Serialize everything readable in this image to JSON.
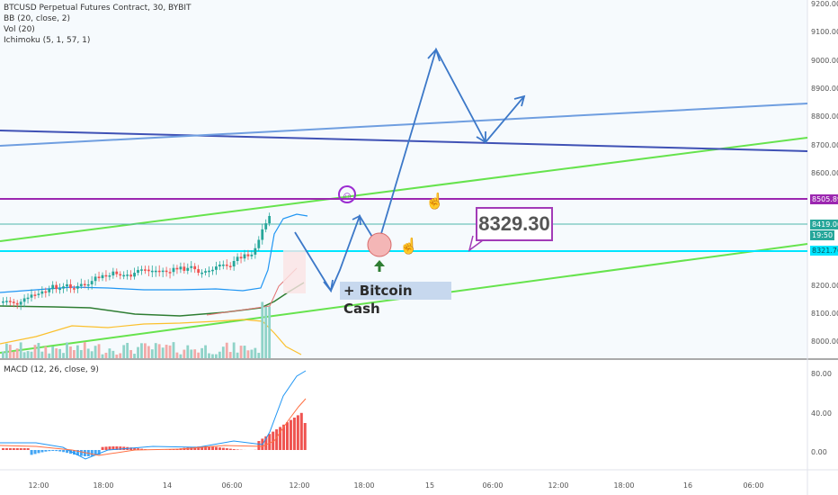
{
  "legend": {
    "symbol": "BTCUSD Perpetual Futures Contract, 30, BYBIT",
    "bb": "BB (20, close, 2)",
    "vol": "Vol (20)",
    "ichimoku": "Ichimoku (5, 1, 57, 1)"
  },
  "macd_legend": "MACD (12, 26, close, 9)",
  "price_axis": [
    "9200.00",
    "9100.00",
    "9000.00",
    "8900.00",
    "8800.00",
    "8700.00",
    "8600.00",
    "8200.00",
    "8100.00",
    "8000.00"
  ],
  "price_tags": {
    "resistance": "8505.89",
    "last": "8419.00",
    "countdown": "19:50",
    "support": "8321.76"
  },
  "macd_axis": [
    "80.00",
    "40.00",
    "0.00"
  ],
  "time_axis": [
    "12:00",
    "18:00",
    "14",
    "06:00",
    "12:00",
    "18:00",
    "15",
    "06:00",
    "12:00",
    "18:00",
    "16",
    "06:00"
  ],
  "annotations": {
    "price_box": "8329.30",
    "bitcoin_cash": "+ Bitcoin Cash",
    "smiley": "☺",
    "hand": "☝"
  },
  "colors": {
    "resistance": "#9c27b0",
    "support": "#00e5ff",
    "green_channel": "#66e34d",
    "blue_trend": "#3f51b5",
    "light_blue_trend": "#6f9ee0",
    "arrow": "#3c78c8",
    "macd_bar": "#ef5350",
    "macd_bar_neg": "#42a5f5"
  },
  "chart_data": [
    {
      "type": "candlestick",
      "title": "BTCUSD Perpetual Futures Contract, 30, BYBIT",
      "ylim": [
        7950,
        9220
      ],
      "y_ticks": [
        8000,
        8100,
        8200,
        8600,
        8700,
        8800,
        8900,
        9000,
        9100,
        9200
      ],
      "horizontal_levels": [
        8505.89,
        8419.0,
        8321.76
      ]
    },
    {
      "type": "bar",
      "title": "MACD (12, 26, close, 9)",
      "ylim": [
        -20,
        90
      ],
      "y_ticks": [
        0,
        40,
        80
      ]
    }
  ]
}
